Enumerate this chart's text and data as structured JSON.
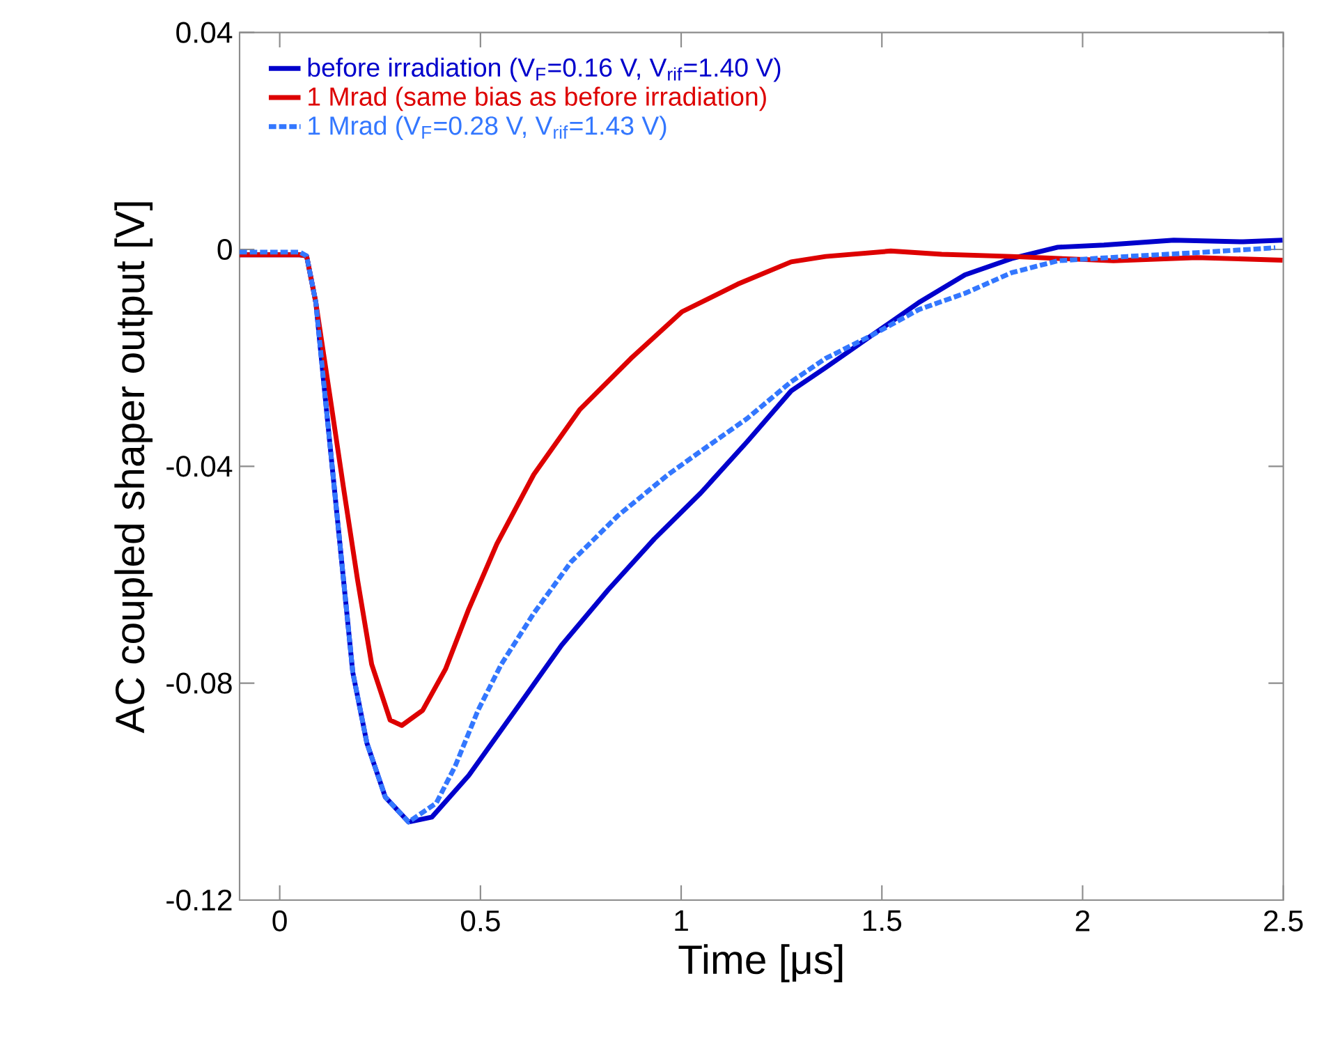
{
  "chart_data": {
    "type": "line",
    "xlabel": "Time [μs]",
    "ylabel": "AC coupled shaper output [V]",
    "xlim": [
      -0.1,
      2.5
    ],
    "xticks": [
      0,
      0.5,
      1,
      1.5,
      2,
      2.5
    ],
    "ylim": [
      -0.12,
      0.04
    ],
    "yticks": [
      -0.12,
      -0.08,
      -0.04,
      0,
      0.04
    ],
    "grid": false,
    "legend": "top left",
    "series": [
      {
        "name": "before irradiation (V$_{F}$=0.16 V, V$_{rif}$=1.40 V)",
        "color": "#0000cc",
        "line_style": "solid",
        "x": [
          -0.1,
          0.05,
          0.067,
          0.09,
          0.113,
          0.136,
          0.159,
          0.182,
          0.217,
          0.263,
          0.321,
          0.379,
          0.471,
          0.587,
          0.702,
          0.818,
          0.933,
          1.049,
          1.164,
          1.274,
          1.36,
          1.476,
          1.592,
          1.707,
          1.823,
          1.938,
          2.053,
          2.227,
          2.4,
          2.498
        ],
        "values": [
          -0.001,
          -0.001,
          -0.0012,
          -0.0098,
          -0.027,
          -0.044,
          -0.061,
          -0.078,
          -0.091,
          -0.101,
          -0.1056,
          -0.1047,
          -0.097,
          -0.085,
          -0.073,
          -0.0628,
          -0.0534,
          -0.0449,
          -0.0355,
          -0.0261,
          -0.0218,
          -0.0158,
          -0.0098,
          -0.0047,
          -0.0017,
          0.0004,
          0.0008,
          0.0017,
          0.0014,
          0.0017
        ]
      },
      {
        "name": "1 Mrad (same bias as before irradiation)",
        "color": "#dd0000",
        "line_style": "solid",
        "x": [
          -0.1,
          0.05,
          0.067,
          0.09,
          0.125,
          0.159,
          0.194,
          0.229,
          0.275,
          0.304,
          0.356,
          0.413,
          0.471,
          0.541,
          0.633,
          0.748,
          0.875,
          1.002,
          1.141,
          1.274,
          1.36,
          1.522,
          1.649,
          1.823,
          2.077,
          2.284,
          2.498
        ],
        "values": [
          -0.001,
          -0.001,
          -0.0012,
          -0.0098,
          -0.027,
          -0.044,
          -0.061,
          -0.0765,
          -0.0868,
          -0.0878,
          -0.085,
          -0.0774,
          -0.0663,
          -0.0543,
          -0.0415,
          -0.0295,
          -0.0201,
          -0.0115,
          -0.0064,
          -0.0023,
          -0.0013,
          -0.0003,
          -0.0009,
          -0.0013,
          -0.0021,
          -0.0015,
          -0.002
        ]
      },
      {
        "name": "1 Mrad (V$_{F}$=0.28 V, V$_{rif}$=1.43 V)",
        "color": "#3377ff",
        "line_style": "dashed",
        "x": [
          -0.1,
          0.05,
          0.067,
          0.09,
          0.113,
          0.136,
          0.159,
          0.182,
          0.217,
          0.263,
          0.321,
          0.39,
          0.437,
          0.494,
          0.552,
          0.633,
          0.725,
          0.841,
          0.968,
          1.049,
          1.164,
          1.274,
          1.36,
          1.476,
          1.592,
          1.707,
          1.823,
          1.938,
          2.112,
          2.284,
          2.48
        ],
        "values": [
          -0.0005,
          -0.0005,
          -0.0012,
          -0.0098,
          -0.027,
          -0.044,
          -0.061,
          -0.078,
          -0.091,
          -0.101,
          -0.1056,
          -0.1021,
          -0.0953,
          -0.085,
          -0.0765,
          -0.0671,
          -0.0577,
          -0.0492,
          -0.0415,
          -0.0372,
          -0.0312,
          -0.0244,
          -0.0201,
          -0.0158,
          -0.0111,
          -0.0081,
          -0.0043,
          -0.0021,
          -0.0013,
          -0.0006,
          0.0003
        ]
      }
    ]
  }
}
